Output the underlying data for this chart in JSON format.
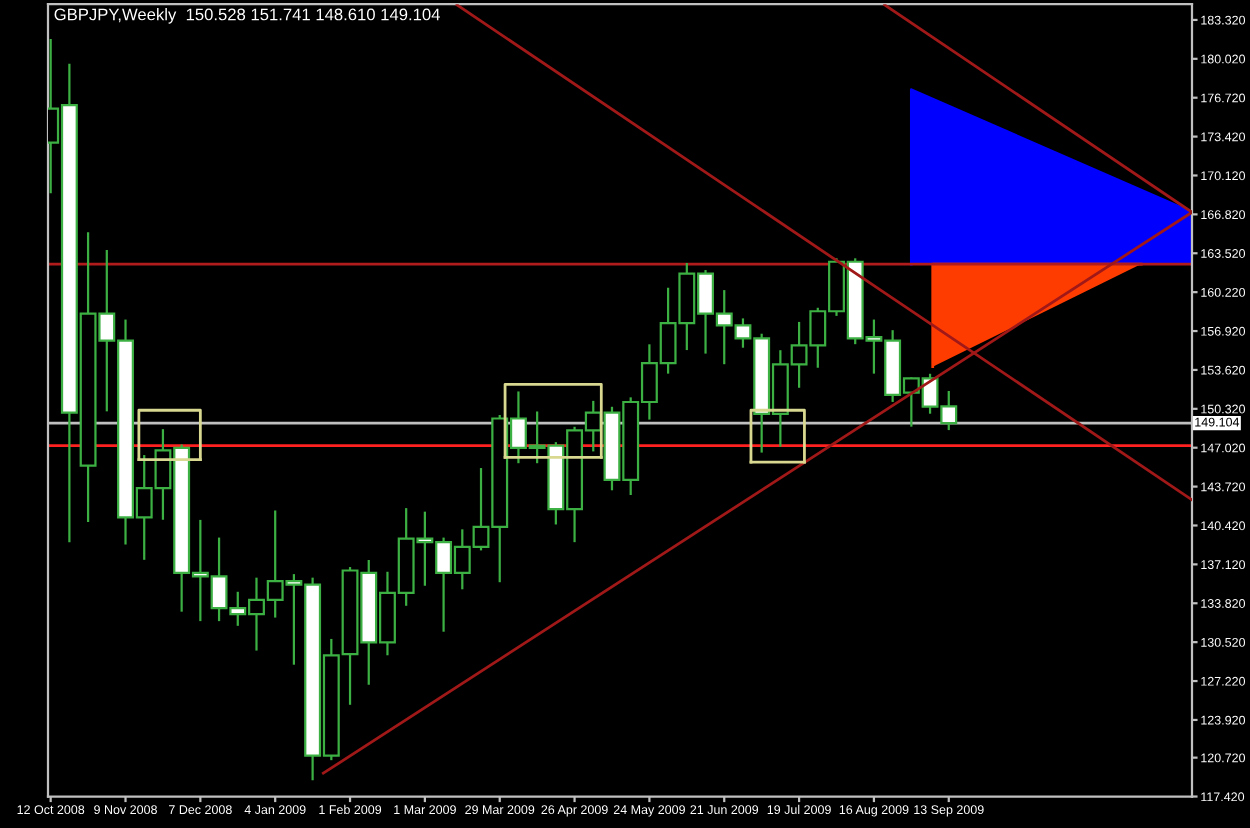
{
  "chart_data": {
    "type": "candlestick",
    "title": "GBPJPY,Weekly  150.528 151.741 148.610 149.104",
    "color": "#3cb043",
    "x": [
      "2008-10-12",
      "2008-10-19",
      "2008-10-26",
      "2008-11-02",
      "2008-11-09",
      "2008-11-16",
      "2008-11-23",
      "2008-11-30",
      "2008-12-07",
      "2008-12-14",
      "2008-12-21",
      "2008-12-28",
      "2009-01-04",
      "2009-01-11",
      "2009-01-18",
      "2009-01-25",
      "2009-02-01",
      "2009-02-08",
      "2009-02-15",
      "2009-02-22",
      "2009-03-01",
      "2009-03-08",
      "2009-03-15",
      "2009-03-22",
      "2009-03-29",
      "2009-04-05",
      "2009-04-12",
      "2009-04-19",
      "2009-04-26",
      "2009-05-03",
      "2009-05-10",
      "2009-05-17",
      "2009-05-24",
      "2009-05-31",
      "2009-06-07",
      "2009-06-14",
      "2009-06-21",
      "2009-06-28",
      "2009-07-05",
      "2009-07-12",
      "2009-07-19",
      "2009-07-26",
      "2009-08-02",
      "2009-08-09",
      "2009-08-16",
      "2009-08-23",
      "2009-08-30",
      "2009-09-06",
      "2009-09-13"
    ],
    "ohlc": [
      [
        172.9,
        181.6,
        168.7,
        175.8
      ],
      [
        176.1,
        179.5,
        139.1,
        150.0
      ],
      [
        145.5,
        165.2,
        140.8,
        158.4
      ],
      [
        158.4,
        163.7,
        150.2,
        156.1
      ],
      [
        156.1,
        157.8,
        138.9,
        141.1
      ],
      [
        141.1,
        146.3,
        137.6,
        143.6
      ],
      [
        143.6,
        148.5,
        141.0,
        146.8
      ],
      [
        147.0,
        147.2,
        133.2,
        136.4
      ],
      [
        136.4,
        140.8,
        132.4,
        136.1
      ],
      [
        136.1,
        139.3,
        132.4,
        133.4
      ],
      [
        133.4,
        134.7,
        132.0,
        132.9
      ],
      [
        132.9,
        135.9,
        129.9,
        134.1
      ],
      [
        134.1,
        141.6,
        132.7,
        135.7
      ],
      [
        135.7,
        136.2,
        128.7,
        135.4
      ],
      [
        135.4,
        135.9,
        118.9,
        120.9
      ],
      [
        120.9,
        130.7,
        120.6,
        129.4
      ],
      [
        129.5,
        136.8,
        125.3,
        136.6
      ],
      [
        136.4,
        137.4,
        127.0,
        130.5
      ],
      [
        130.5,
        136.4,
        129.5,
        134.7
      ],
      [
        134.7,
        141.8,
        133.7,
        139.3
      ],
      [
        139.3,
        141.5,
        135.4,
        139.0
      ],
      [
        139.0,
        139.3,
        131.5,
        136.4
      ],
      [
        136.4,
        140.0,
        135.1,
        138.6
      ],
      [
        138.6,
        145.2,
        138.4,
        140.3
      ],
      [
        140.3,
        149.7,
        135.7,
        149.5
      ],
      [
        149.5,
        151.7,
        145.8,
        147.0
      ],
      [
        147.0,
        150.0,
        145.8,
        147.2
      ],
      [
        147.2,
        147.4,
        140.6,
        141.8
      ],
      [
        141.8,
        148.7,
        139.1,
        148.5
      ],
      [
        148.5,
        150.9,
        146.8,
        150.0
      ],
      [
        150.0,
        150.4,
        143.5,
        144.3
      ],
      [
        144.3,
        151.2,
        143.1,
        150.9
      ],
      [
        150.9,
        155.7,
        149.5,
        154.2
      ],
      [
        154.2,
        160.5,
        153.4,
        157.6
      ],
      [
        157.6,
        162.6,
        155.4,
        161.8
      ],
      [
        161.8,
        162.0,
        155.1,
        158.4
      ],
      [
        158.4,
        160.3,
        154.2,
        157.4
      ],
      [
        157.4,
        157.9,
        155.6,
        156.3
      ],
      [
        156.3,
        156.6,
        146.7,
        149.9
      ],
      [
        149.9,
        155.2,
        147.2,
        154.1
      ],
      [
        154.1,
        157.6,
        152.2,
        155.7
      ],
      [
        155.7,
        158.8,
        153.9,
        158.6
      ],
      [
        158.6,
        163.0,
        158.3,
        162.8
      ],
      [
        162.8,
        163.0,
        155.9,
        156.3
      ],
      [
        156.4,
        157.8,
        153.4,
        156.1
      ],
      [
        156.1,
        156.9,
        151.0,
        151.5
      ],
      [
        151.7,
        152.9,
        148.9,
        152.9
      ],
      [
        152.9,
        153.2,
        150.0,
        150.5
      ],
      [
        150.528,
        151.741,
        148.61,
        149.104
      ]
    ],
    "series": [
      {
        "type": "area",
        "color": "#0000ff",
        "x": [
          "2009-08-30",
          "2009-08-30",
          "2009-12-13",
          "2009-12-13"
        ],
        "values": [
          162.6,
          177.4,
          167.0,
          162.6
        ]
      },
      {
        "type": "area",
        "color": "#ff3c00",
        "x": [
          "2009-09-07",
          "2009-09-07",
          "2009-11-24"
        ],
        "values": [
          153.9,
          162.6,
          162.6
        ]
      },
      {
        "type": "line",
        "color": "#a01818",
        "x": [
          "2009-01-22",
          "2009-12-13"
        ],
        "values": [
          119.4,
          167.0
        ]
      },
      {
        "type": "line",
        "color": "#a01818",
        "x": [
          "2009-03-13",
          "2009-12-13"
        ],
        "values": [
          184.6,
          142.6
        ]
      },
      {
        "type": "line",
        "color": "#a01818",
        "x": [
          "2009-08-20",
          "2009-12-13"
        ],
        "values": [
          184.6,
          167.0
        ]
      },
      {
        "type": "line",
        "color": "#d8d890",
        "x": [
          "2008-11-14",
          "2008-11-14",
          "2008-12-07",
          "2008-12-07"
        ],
        "values": [
          146.0,
          150.2,
          150.2,
          146.0
        ]
      },
      {
        "type": "line",
        "color": "#d8d890",
        "x": [
          "2008-11-14",
          "2008-12-07"
        ],
        "values": [
          146.0,
          146.0
        ]
      },
      {
        "type": "line",
        "color": "#d8d890",
        "x": [
          "2009-03-31",
          "2009-03-31",
          "2009-05-06",
          "2009-05-06"
        ],
        "values": [
          146.2,
          152.4,
          152.4,
          146.2
        ]
      },
      {
        "type": "line",
        "color": "#d8d890",
        "x": [
          "2009-03-31",
          "2009-05-06"
        ],
        "values": [
          146.2,
          146.2
        ]
      },
      {
        "type": "line",
        "color": "#d8d890",
        "x": [
          "2009-07-01",
          "2009-07-01",
          "2009-07-21",
          "2009-07-21"
        ],
        "values": [
          145.8,
          150.2,
          150.2,
          145.8
        ]
      },
      {
        "type": "line",
        "color": "#d8d890",
        "x": [
          "2009-07-01",
          "2009-07-21"
        ],
        "values": [
          145.8,
          145.8
        ]
      }
    ],
    "ref_lines": [
      {
        "axis": "y",
        "value": 162.6,
        "color": "#b01c1c"
      },
      {
        "axis": "y",
        "value": 147.2,
        "color": "#ff2020"
      },
      {
        "axis": "y",
        "value": 149.104,
        "label": "149.104",
        "color": "#c0c0c0"
      }
    ],
    "xlim": [
      "2008-10-11",
      "2009-12-13"
    ],
    "xticks": [
      {
        "value": "2008-10-12",
        "label": "12 Oct 2008"
      },
      {
        "value": "2008-11-09",
        "label": "9 Nov 2008"
      },
      {
        "value": "2008-12-07",
        "label": "7 Dec 2008"
      },
      {
        "value": "2009-01-04",
        "label": "4 Jan 2009"
      },
      {
        "value": "2009-02-01",
        "label": "1 Feb 2009"
      },
      {
        "value": "2009-03-01",
        "label": "1 Mar 2009"
      },
      {
        "value": "2009-03-29",
        "label": "29 Mar 2009"
      },
      {
        "value": "2009-04-26",
        "label": "26 Apr 2009"
      },
      {
        "value": "2009-05-24",
        "label": "24 May 2009"
      },
      {
        "value": "2009-06-21",
        "label": "21 Jun 2009"
      },
      {
        "value": "2009-07-19",
        "label": "19 Jul 2009"
      },
      {
        "value": "2009-08-16",
        "label": "16 Aug 2009"
      },
      {
        "value": "2009-09-13",
        "label": "13 Sep 2009"
      }
    ],
    "ylim": [
      117.42,
      184.66
    ],
    "yticks": [
      {
        "value": 117.42,
        "label": "117.420"
      },
      {
        "value": 120.72,
        "label": "120.720"
      },
      {
        "value": 123.92,
        "label": "123.920"
      },
      {
        "value": 127.22,
        "label": "127.220"
      },
      {
        "value": 130.52,
        "label": "130.520"
      },
      {
        "value": 133.82,
        "label": "133.820"
      },
      {
        "value": 137.12,
        "label": "137.120"
      },
      {
        "value": 140.42,
        "label": "140.420"
      },
      {
        "value": 143.72,
        "label": "143.720"
      },
      {
        "value": 147.02,
        "label": "147.020"
      },
      {
        "value": 150.32,
        "label": "150.320"
      },
      {
        "value": 153.62,
        "label": "153.620"
      },
      {
        "value": 156.92,
        "label": "156.920"
      },
      {
        "value": 160.22,
        "label": "160.220"
      },
      {
        "value": 163.52,
        "label": "163.520"
      },
      {
        "value": 166.82,
        "label": "166.820"
      },
      {
        "value": 170.12,
        "label": "170.120"
      },
      {
        "value": 173.42,
        "label": "173.420"
      },
      {
        "value": 176.72,
        "label": "176.720"
      },
      {
        "value": 180.02,
        "label": "180.020"
      },
      {
        "value": 183.32,
        "label": "183.320"
      }
    ],
    "grid": false
  }
}
